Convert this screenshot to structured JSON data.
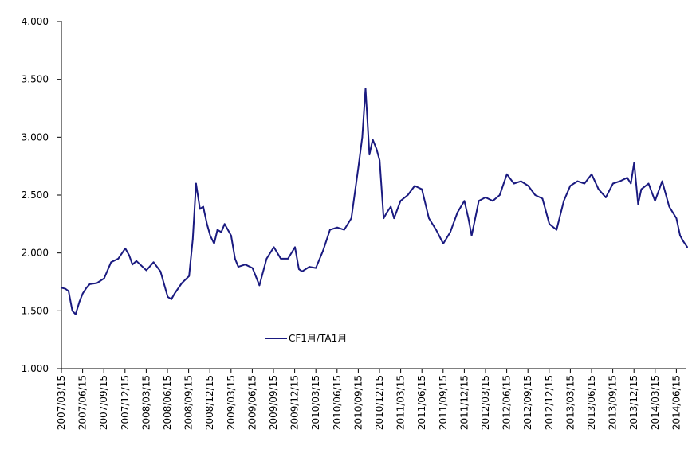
{
  "chart_data": {
    "type": "line",
    "title": "",
    "xlabel": "",
    "ylabel": "",
    "ylim": [
      1.0,
      4.0
    ],
    "y_ticks": [
      "1.000",
      "1.500",
      "2.000",
      "2.500",
      "3.000",
      "3.500",
      "4.000"
    ],
    "x_tick_labels": [
      "2007/03/15",
      "2007/06/15",
      "2007/09/15",
      "2007/12/15",
      "2008/03/15",
      "2008/06/15",
      "2008/09/15",
      "2008/12/15",
      "2009/03/15",
      "2009/06/15",
      "2009/09/15",
      "2009/12/15",
      "2010/03/15",
      "2010/06/15",
      "2010/09/15",
      "2010/12/15",
      "2011/03/15",
      "2011/06/15",
      "2011/09/15",
      "2011/12/15",
      "2012/03/15",
      "2012/06/15",
      "2012/09/15",
      "2012/12/15",
      "2013/03/15",
      "2013/06/15",
      "2013/09/15",
      "2013/12/15",
      "2014/03/15",
      "2014/06/15"
    ],
    "grid": false,
    "legend_position": "center-left",
    "colors": {
      "series": "#1a1a80",
      "axis": "#000000"
    },
    "series": [
      {
        "name": "CF1月/TA1月",
        "x": [
          "2007/03/15",
          "2007/04/01",
          "2007/04/15",
          "2007/05/01",
          "2007/05/15",
          "2007/06/01",
          "2007/06/15",
          "2007/07/01",
          "2007/07/15",
          "2007/08/15",
          "2007/09/15",
          "2007/10/15",
          "2007/11/15",
          "2007/12/15",
          "2008/01/01",
          "2008/01/15",
          "2008/02/01",
          "2008/03/15",
          "2008/04/15",
          "2008/05/15",
          "2008/06/15",
          "2008/07/01",
          "2008/07/15",
          "2008/08/15",
          "2008/09/15",
          "2008/10/01",
          "2008/10/15",
          "2008/11/01",
          "2008/11/15",
          "2008/12/01",
          "2008/12/15",
          "2009/01/01",
          "2009/01/15",
          "2009/02/01",
          "2009/02/15",
          "2009/03/15",
          "2009/04/01",
          "2009/04/15",
          "2009/05/15",
          "2009/06/15",
          "2009/07/15",
          "2009/08/15",
          "2009/09/15",
          "2009/10/15",
          "2009/11/15",
          "2009/12/15",
          "2010/01/01",
          "2010/01/15",
          "2010/02/15",
          "2010/03/15",
          "2010/04/15",
          "2010/05/15",
          "2010/06/15",
          "2010/07/15",
          "2010/08/15",
          "2010/09/01",
          "2010/09/15",
          "2010/10/01",
          "2010/10/15",
          "2010/11/01",
          "2010/11/15",
          "2010/12/01",
          "2010/12/15",
          "2011/01/01",
          "2011/01/15",
          "2011/02/01",
          "2011/02/15",
          "2011/03/15",
          "2011/04/15",
          "2011/05/15",
          "2011/06/15",
          "2011/07/15",
          "2011/08/15",
          "2011/09/15",
          "2011/10/15",
          "2011/11/15",
          "2011/12/15",
          "2012/01/01",
          "2012/01/15",
          "2012/02/15",
          "2012/03/15",
          "2012/04/15",
          "2012/05/15",
          "2012/06/15",
          "2012/07/15",
          "2012/08/15",
          "2012/09/15",
          "2012/10/15",
          "2012/11/15",
          "2012/12/15",
          "2013/01/15",
          "2013/02/15",
          "2013/03/15",
          "2013/04/15",
          "2013/05/15",
          "2013/06/15",
          "2013/07/15",
          "2013/08/15",
          "2013/09/15",
          "2013/10/15",
          "2013/11/15",
          "2013/12/01",
          "2013/12/15",
          "2014/01/01",
          "2014/01/15",
          "2014/02/15",
          "2014/03/15",
          "2014/04/15",
          "2014/05/15",
          "2014/06/15",
          "2014/07/01",
          "2014/07/15",
          "2014/08/01"
        ],
        "values": [
          1.7,
          1.69,
          1.67,
          1.5,
          1.47,
          1.58,
          1.65,
          1.7,
          1.73,
          1.74,
          1.78,
          1.92,
          1.95,
          2.04,
          1.98,
          1.9,
          1.93,
          1.85,
          1.92,
          1.84,
          1.62,
          1.6,
          1.65,
          1.74,
          1.8,
          2.12,
          2.6,
          2.38,
          2.4,
          2.25,
          2.15,
          2.08,
          2.2,
          2.18,
          2.25,
          2.15,
          1.95,
          1.88,
          1.9,
          1.87,
          1.72,
          1.95,
          2.05,
          1.95,
          1.95,
          2.05,
          1.86,
          1.84,
          1.88,
          1.87,
          2.02,
          2.2,
          2.22,
          2.2,
          2.3,
          2.55,
          2.75,
          3.0,
          3.42,
          2.85,
          2.98,
          2.9,
          2.8,
          2.3,
          2.35,
          2.4,
          2.3,
          2.45,
          2.5,
          2.58,
          2.55,
          2.3,
          2.2,
          2.08,
          2.18,
          2.35,
          2.45,
          2.3,
          2.15,
          2.45,
          2.48,
          2.45,
          2.5,
          2.68,
          2.6,
          2.62,
          2.58,
          2.5,
          2.47,
          2.25,
          2.2,
          2.45,
          2.58,
          2.62,
          2.6,
          2.68,
          2.55,
          2.48,
          2.6,
          2.62,
          2.65,
          2.6,
          2.78,
          2.42,
          2.55,
          2.6,
          2.45,
          2.62,
          2.4,
          2.3,
          2.15,
          2.1,
          2.05
        ]
      }
    ]
  }
}
